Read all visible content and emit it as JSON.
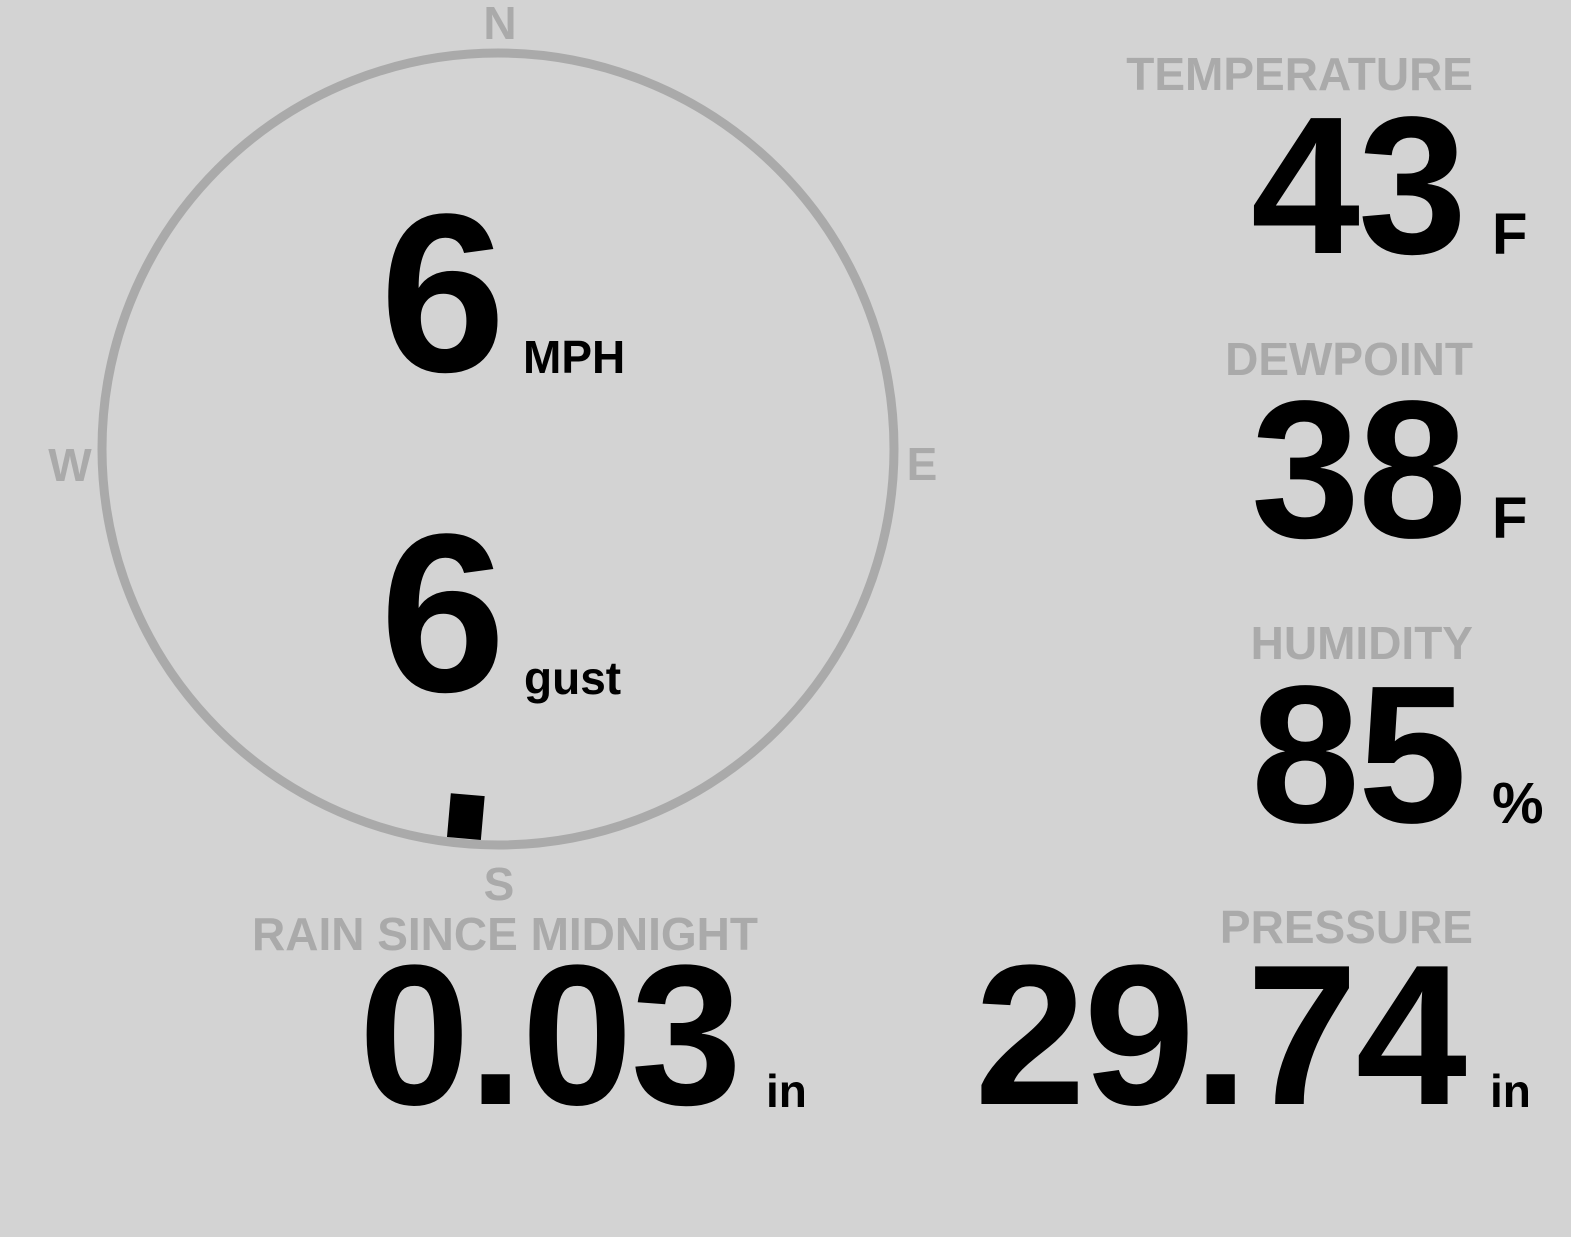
{
  "colors": {
    "background": "#d3d3d3",
    "label": "#aaaaaa",
    "value": "#000000",
    "ring": "#aaaaaa"
  },
  "compass": {
    "n": "N",
    "e": "E",
    "s": "S",
    "w": "W"
  },
  "wind": {
    "speed": "6",
    "speed_unit": "MPH",
    "gust": "6",
    "gust_unit": "gust",
    "direction_deg": 185
  },
  "temperature": {
    "label": "TEMPERATURE",
    "value": "43",
    "unit": "F"
  },
  "dewpoint": {
    "label": "DEWPOINT",
    "value": "38",
    "unit": "F"
  },
  "humidity": {
    "label": "HUMIDITY",
    "value": "85",
    "unit": "%"
  },
  "pressure": {
    "label": "PRESSURE",
    "value": "29.74",
    "unit": "in"
  },
  "rain": {
    "label": "RAIN SINCE MIDNIGHT",
    "value": "0.03",
    "unit": "in"
  }
}
